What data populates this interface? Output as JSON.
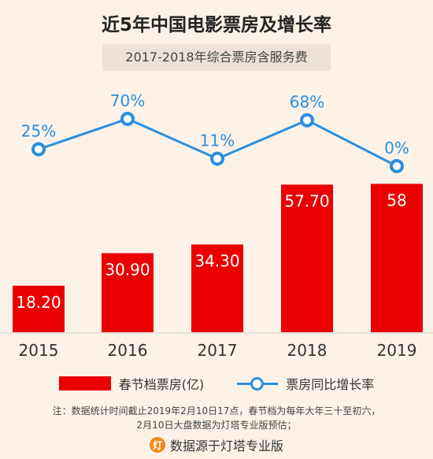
{
  "chart_data": {
    "type": "bar",
    "title": "近5年中国电影票房及增长率",
    "subtitle": "2017-2018年综合票房含服务费",
    "categories": [
      "2015",
      "2016",
      "2017",
      "2018",
      "2019"
    ],
    "series": [
      {
        "name": "春节档票房(亿)",
        "type": "bar",
        "values": [
          18.2,
          30.9,
          34.3,
          57.7,
          58
        ],
        "labels": [
          "18.20",
          "30.90",
          "34.30",
          "57.70",
          "58"
        ],
        "color": "#ea0000"
      },
      {
        "name": "票房同比增长率",
        "type": "line",
        "values": [
          25,
          70,
          11,
          68,
          0
        ],
        "labels": [
          "25%",
          "70%",
          "11%",
          "68%",
          "0%"
        ],
        "color": "#2a8fe0"
      }
    ],
    "legend_position": "bottom",
    "grid": false
  },
  "note_lines": [
    "注：数据统计时间截止2019年2月10日17点，春节档为每年大年三十至初六，",
    "2月10日大盘数据为灯塔专业版预估；"
  ],
  "source": "数据源于灯塔专业版",
  "source_icon_char": "灯",
  "source_icon": "lighthouse-logo-icon"
}
